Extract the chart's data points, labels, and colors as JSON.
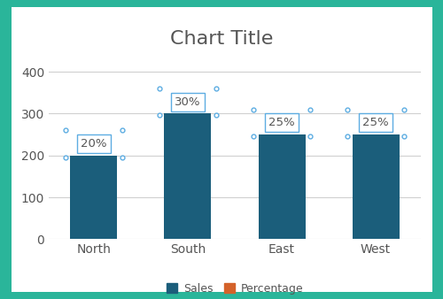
{
  "title": "Chart Title",
  "categories": [
    "North",
    "South",
    "East",
    "West"
  ],
  "sales": [
    200,
    300,
    250,
    250
  ],
  "percentages": [
    "20%",
    "30%",
    "25%",
    "25%"
  ],
  "bar_color": "#1b5e7b",
  "percentage_color": "#d4622a",
  "background_outer": "#2ab59a",
  "background_inner": "#ffffff",
  "ylim": [
    0,
    450
  ],
  "yticks": [
    0,
    100,
    200,
    300,
    400
  ],
  "legend_sales_label": "Sales",
  "legend_pct_label": "Percentage",
  "title_fontsize": 16,
  "axis_fontsize": 10,
  "legend_fontsize": 9,
  "bar_width": 0.5,
  "grid_color": "#d0d0d0",
  "label_box_color": "#ffffff",
  "label_box_edge_color": "#5dade2",
  "label_text_color": "#555555",
  "title_color": "#555555"
}
